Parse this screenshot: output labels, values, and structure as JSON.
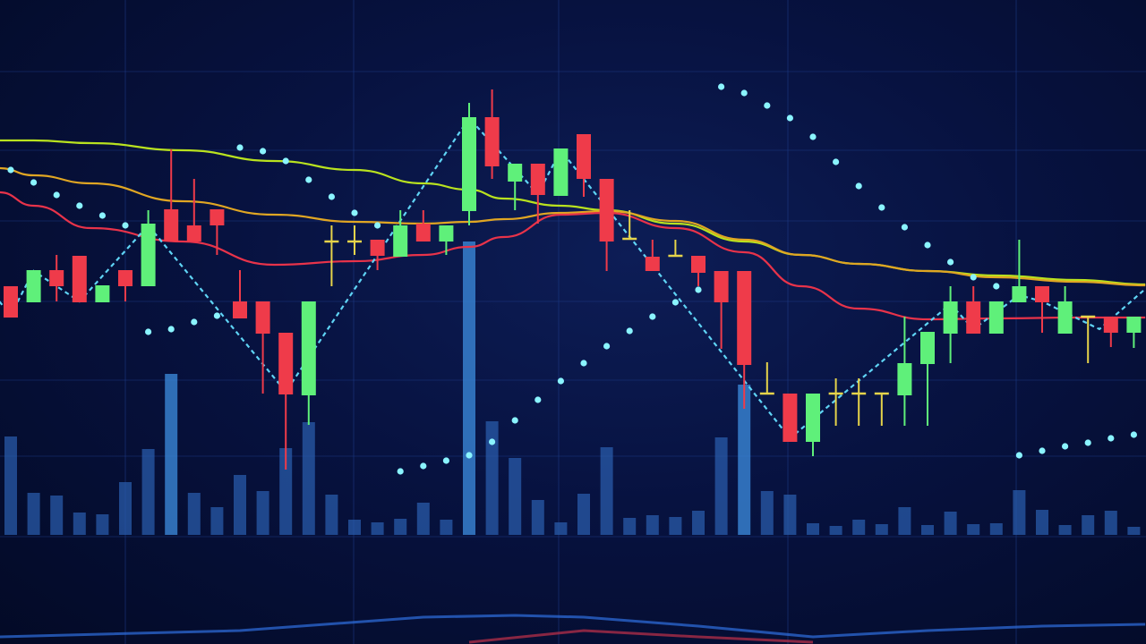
{
  "chart_data": {
    "type": "candlestick",
    "title": "",
    "xlabel": "",
    "ylabel": "",
    "ylim": [
      -16,
      130
    ],
    "grid": true,
    "legend": "none",
    "colors": {
      "up": "#5ff07a",
      "down": "#ef3b4a",
      "doji": "#e6d44a",
      "volume": "#2b5fb0",
      "sar": "#8af4ff",
      "zigzag": "#5fd4f5",
      "ma_slow": "#b9e21f",
      "ma_mid": "#e0a623",
      "ma_fast": "#e8334a",
      "grid": "#1e3c8a"
    },
    "candles": [
      {
        "o": 66,
        "h": 66,
        "l": 59,
        "c": 59
      },
      {
        "o": 62.4,
        "h": 69.6,
        "l": 62.4,
        "c": 69.6
      },
      {
        "o": 69.6,
        "h": 73,
        "l": 62.6,
        "c": 66
      },
      {
        "o": 72.8,
        "h": 72.8,
        "l": 62.4,
        "c": 62.4
      },
      {
        "o": 62.4,
        "h": 66.2,
        "l": 62.4,
        "c": 66.2
      },
      {
        "o": 69.6,
        "h": 69.6,
        "l": 62.6,
        "c": 66
      },
      {
        "o": 66,
        "h": 83,
        "l": 66,
        "c": 80
      },
      {
        "o": 83.2,
        "h": 96.6,
        "l": 76,
        "c": 76
      },
      {
        "o": 79.6,
        "h": 90,
        "l": 76,
        "c": 76
      },
      {
        "o": 83.2,
        "h": 83.2,
        "l": 73,
        "c": 79.6
      },
      {
        "o": 62.6,
        "h": 69.6,
        "l": 58.8,
        "c": 58.8
      },
      {
        "o": 62.6,
        "h": 62.6,
        "l": 42,
        "c": 55.4
      },
      {
        "o": 55.6,
        "h": 55.6,
        "l": 25,
        "c": 41.8
      },
      {
        "o": 41.6,
        "h": 62.6,
        "l": 35,
        "c": 62.6
      },
      {
        "o": 76,
        "h": 79.6,
        "l": 66,
        "c": 76
      },
      {
        "o": 76,
        "h": 79.6,
        "l": 73,
        "c": 76
      },
      {
        "o": 76.4,
        "h": 76.4,
        "l": 69.6,
        "c": 72.8
      },
      {
        "o": 72.6,
        "h": 83,
        "l": 72.6,
        "c": 79.6
      },
      {
        "o": 80,
        "h": 83,
        "l": 76,
        "c": 76
      },
      {
        "o": 76,
        "h": 79.6,
        "l": 73,
        "c": 79.6
      },
      {
        "o": 82.8,
        "h": 107,
        "l": 79.6,
        "c": 103.8
      },
      {
        "o": 103.8,
        "h": 110,
        "l": 90,
        "c": 92.8
      },
      {
        "o": 89.4,
        "h": 93.4,
        "l": 83,
        "c": 93.4
      },
      {
        "o": 93.4,
        "h": 93.4,
        "l": 80,
        "c": 86.4
      },
      {
        "o": 86.2,
        "h": 96.8,
        "l": 86.2,
        "c": 96.8
      },
      {
        "o": 100,
        "h": 100,
        "l": 86,
        "c": 90
      },
      {
        "o": 90,
        "h": 90,
        "l": 69.4,
        "c": 76
      },
      {
        "o": 76.6,
        "h": 83,
        "l": 76.6,
        "c": 76.6
      },
      {
        "o": 72.6,
        "h": 76.4,
        "l": 69.4,
        "c": 69.4
      },
      {
        "o": 72.8,
        "h": 76.4,
        "l": 72.8,
        "c": 72.8
      },
      {
        "o": 72.8,
        "h": 72.8,
        "l": 66,
        "c": 69
      },
      {
        "o": 69.4,
        "h": 69.4,
        "l": 52,
        "c": 62.4
      },
      {
        "o": 69.4,
        "h": 69.4,
        "l": 38.6,
        "c": 48.4
      },
      {
        "o": 42,
        "h": 49,
        "l": 42,
        "c": 42
      },
      {
        "o": 42,
        "h": 42,
        "l": 31.2,
        "c": 31.2
      },
      {
        "o": 31.2,
        "h": 42,
        "l": 28,
        "c": 42
      },
      {
        "o": 42,
        "h": 45.4,
        "l": 34.8,
        "c": 42
      },
      {
        "o": 42,
        "h": 45.4,
        "l": 34.8,
        "c": 42
      },
      {
        "o": 42,
        "h": 42,
        "l": 34.8,
        "c": 42
      },
      {
        "o": 41.6,
        "h": 59.2,
        "l": 34.8,
        "c": 48.8
      },
      {
        "o": 48.6,
        "h": 55.8,
        "l": 34.8,
        "c": 55.8
      },
      {
        "o": 55.4,
        "h": 66,
        "l": 48.8,
        "c": 62.6
      },
      {
        "o": 62.6,
        "h": 66,
        "l": 55.4,
        "c": 55.4
      },
      {
        "o": 55.4,
        "h": 62.6,
        "l": 55.4,
        "c": 62.6
      },
      {
        "o": 62.4,
        "h": 76.4,
        "l": 62.4,
        "c": 66
      },
      {
        "o": 66,
        "h": 66,
        "l": 55.6,
        "c": 62.4
      },
      {
        "o": 55.4,
        "h": 66,
        "l": 55.4,
        "c": 62.6
      },
      {
        "o": 59.2,
        "h": 59.2,
        "l": 48.8,
        "c": 59.2
      },
      {
        "o": 59.2,
        "h": 59.2,
        "l": 52.4,
        "c": 55.6
      },
      {
        "o": 55.6,
        "h": 59.2,
        "l": 52.2,
        "c": 59.2
      }
    ],
    "volume": [
      110,
      47,
      44,
      25,
      23,
      59,
      96,
      180,
      47,
      31,
      67,
      49,
      97,
      126,
      45,
      17,
      14,
      18,
      36,
      17,
      328,
      127,
      86,
      39,
      14,
      46,
      98,
      19,
      22,
      20,
      27,
      109,
      168,
      49,
      45,
      13,
      10,
      17,
      12,
      31,
      11,
      26,
      12,
      13,
      50,
      28,
      11,
      22,
      27,
      9
    ],
    "sar": [
      92,
      89.2,
      86.4,
      84,
      81.8,
      79.6,
      55.8,
      56.4,
      58,
      59.4,
      97,
      96.2,
      94,
      89.8,
      86,
      82.4,
      79.6,
      24.6,
      25.8,
      27,
      28.2,
      31.2,
      36,
      40.6,
      44.8,
      48.8,
      52.6,
      56,
      59.2,
      62.4,
      65.2,
      110.6,
      109.2,
      106.4,
      103.6,
      99.4,
      93.8,
      88.4,
      83.6,
      79.2,
      75.2,
      71.4,
      68,
      66,
      28.2,
      29.2,
      30.2,
      31,
      32,
      32.8
    ],
    "moving_averages": {
      "x": [
        -0.5,
        1,
        3.5,
        7.5,
        11.5,
        15,
        18,
        20,
        21.5,
        24,
        26,
        29,
        32,
        34.5,
        37,
        40,
        43,
        46.5,
        49.5
      ],
      "series": [
        {
          "key": "ma_slow",
          "values": [
            98.6,
            98.6,
            98,
            96.4,
            94,
            92,
            89,
            87.6,
            85.6,
            84,
            83,
            80,
            76,
            73,
            71,
            69.4,
            68.4,
            67.4,
            66.4
          ]
        },
        {
          "key": "ma_mid",
          "values": [
            92.4,
            90.8,
            89,
            85,
            82,
            80.4,
            80,
            80.4,
            81,
            82.4,
            82.8,
            80.6,
            76.4,
            73,
            71,
            69.4,
            68,
            67,
            66.2
          ]
        },
        {
          "key": "ma_fast",
          "values": [
            87,
            84,
            79,
            76,
            70.8,
            71.6,
            73,
            74.8,
            77,
            82,
            82.4,
            79,
            73.6,
            66,
            61,
            58.6,
            58.8,
            59,
            59
          ]
        }
      ]
    },
    "zigzag": [
      [
        -0.5,
        62.6
      ],
      [
        0,
        59.6
      ],
      [
        1,
        69.4
      ],
      [
        3,
        62.6
      ],
      [
        6,
        79.6
      ],
      [
        12,
        42.4
      ],
      [
        20,
        103.6
      ],
      [
        23,
        86.6
      ],
      [
        24,
        96.4
      ],
      [
        34,
        32
      ],
      [
        41,
        62
      ],
      [
        42,
        56.4
      ],
      [
        44,
        64
      ],
      [
        45,
        62.6
      ],
      [
        47.5,
        56.4
      ],
      [
        49.5,
        65.4
      ]
    ],
    "oscillator": [
      {
        "color": "#2f6fe0",
        "points": [
          [
            -0.5,
            -6
          ],
          [
            10,
            -2.5
          ],
          [
            18,
            5
          ],
          [
            22,
            6
          ],
          [
            25,
            5
          ],
          [
            30,
            0
          ],
          [
            35,
            -6
          ],
          [
            40,
            -2.5
          ],
          [
            45,
            0
          ],
          [
            49.5,
            1
          ]
        ]
      },
      {
        "color": "#c0304a",
        "points": [
          [
            20,
            -9
          ],
          [
            25,
            -2.5
          ],
          [
            30,
            -6
          ],
          [
            35,
            -9
          ]
        ]
      }
    ]
  }
}
